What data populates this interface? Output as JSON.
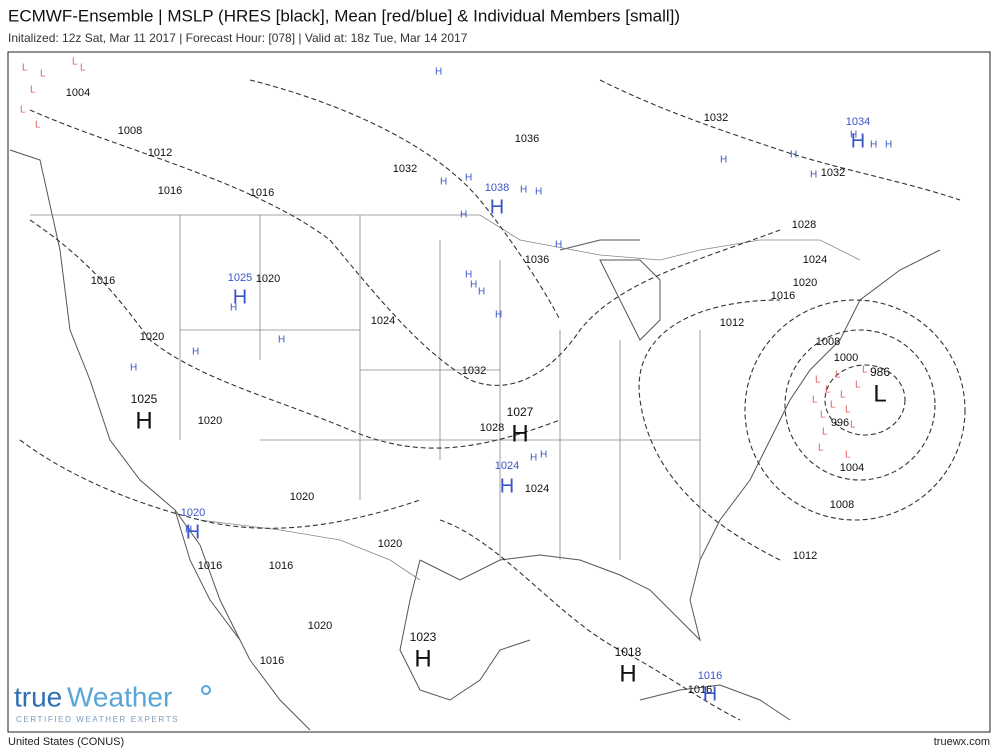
{
  "header": {
    "title": "ECMWF-Ensemble | MSLP (HRES [black], Mean [red/blue] & Individual Members [small])",
    "subtitle": "Initalized: 12z Sat, Mar 11 2017 | Forecast Hour: [078] | Valid at: 18z Tue, Mar 14 2017"
  },
  "map": {
    "colors": {
      "hres": "#111111",
      "mean": "#3a55c8",
      "member_low": "#e06060",
      "member_high": "#3a55c8"
    },
    "member_symbols": {
      "low": "L",
      "high": "H"
    },
    "isobars": [
      {
        "value": 1004,
        "source": "hres"
      },
      {
        "value": 1008,
        "source": "hres"
      },
      {
        "value": 1012,
        "source": "hres"
      },
      {
        "value": 1016,
        "source": "hres"
      },
      {
        "value": 1016,
        "source": "hres"
      },
      {
        "value": 1032,
        "source": "hres"
      },
      {
        "value": 1036,
        "source": "hres"
      },
      {
        "value": 1032,
        "source": "hres"
      },
      {
        "value": 1032,
        "source": "hres"
      },
      {
        "value": 1028,
        "source": "hres"
      },
      {
        "value": 1024,
        "source": "hres"
      },
      {
        "value": 1020,
        "source": "hres"
      },
      {
        "value": 1016,
        "source": "hres"
      },
      {
        "value": 1012,
        "source": "hres"
      },
      {
        "value": 1008,
        "source": "hres"
      },
      {
        "value": 1000,
        "source": "hres"
      },
      {
        "value": 996,
        "source": "hres"
      },
      {
        "value": 1004,
        "source": "hres"
      },
      {
        "value": 1008,
        "source": "hres"
      },
      {
        "value": 1012,
        "source": "hres"
      },
      {
        "value": 1016,
        "source": "hres"
      },
      {
        "value": 1020,
        "source": "hres"
      },
      {
        "value": 1020,
        "source": "hres"
      },
      {
        "value": 1024,
        "source": "hres"
      },
      {
        "value": 1032,
        "source": "hres"
      },
      {
        "value": 1028,
        "source": "hres"
      },
      {
        "value": 1024,
        "source": "hres"
      },
      {
        "value": 1020,
        "source": "hres"
      },
      {
        "value": 1020,
        "source": "hres"
      },
      {
        "value": 1020,
        "source": "hres"
      },
      {
        "value": 1016,
        "source": "hres"
      },
      {
        "value": 1016,
        "source": "hres"
      },
      {
        "value": 1020,
        "source": "hres"
      },
      {
        "value": 1016,
        "source": "hres"
      },
      {
        "value": 1036,
        "source": "hres"
      },
      {
        "value": 1016,
        "source": "hres"
      },
      {
        "value": 1038,
        "source": "mean"
      },
      {
        "value": 1034,
        "source": "mean"
      },
      {
        "value": 1025,
        "source": "mean"
      },
      {
        "value": 1020,
        "source": "mean"
      },
      {
        "value": 1024,
        "source": "mean"
      },
      {
        "value": 1016,
        "source": "mean"
      }
    ],
    "centers": [
      {
        "symbol": "H",
        "value": 1025,
        "source": "hres"
      },
      {
        "symbol": "H",
        "value": 1027,
        "source": "hres"
      },
      {
        "symbol": "H",
        "value": 1023,
        "source": "hres"
      },
      {
        "symbol": "H",
        "value": 1018,
        "source": "hres"
      },
      {
        "symbol": "L",
        "value": 986,
        "source": "hres"
      }
    ]
  },
  "logo": {
    "brand_a": "true",
    "brand_b": "Weather",
    "tagline": "CERTIFIED WEATHER EXPERTS"
  },
  "footer": {
    "region": "United States (CONUS)",
    "site": "truewx.com"
  }
}
